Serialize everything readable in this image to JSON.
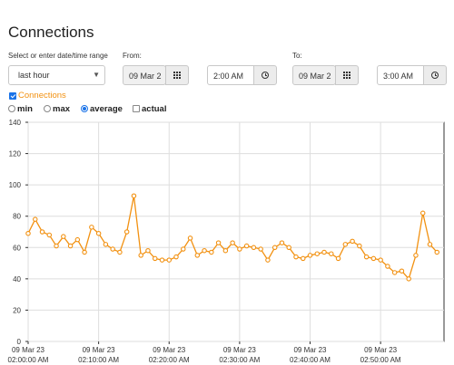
{
  "page": {
    "title": "Connections"
  },
  "range": {
    "select_label": "Select or enter date/time range",
    "selected": "last hour",
    "from_label": "From:",
    "from_date": "09 Mar 2",
    "from_time": "2:00 AM",
    "to_label": "To:",
    "to_date": "09 Mar 2",
    "to_time": "3:00 AM"
  },
  "series_toggle": {
    "label": "Connections",
    "checked": true,
    "color": "#f29111"
  },
  "stats": {
    "min_label": "min",
    "max_label": "max",
    "average_label": "average",
    "actual_label": "actual",
    "selected": "average"
  },
  "icons": {
    "calendar": "calendar-grid-icon",
    "clock": "clock-icon",
    "dropdown": "chevron-down-icon"
  },
  "chart_data": {
    "type": "line",
    "title": "",
    "xlabel": "",
    "ylabel": "",
    "ylim": [
      0,
      140
    ],
    "yticks": [
      0,
      20,
      40,
      60,
      80,
      100,
      120,
      140
    ],
    "xlim": [
      0,
      59
    ],
    "xticks": [
      {
        "x": 0,
        "line1": "09 Mar 23",
        "line2": "02:00:00 AM"
      },
      {
        "x": 10,
        "line1": "09 Mar 23",
        "line2": "02:10:00 AM"
      },
      {
        "x": 20,
        "line1": "09 Mar 23",
        "line2": "02:20:00 AM"
      },
      {
        "x": 30,
        "line1": "09 Mar 23",
        "line2": "02:30:00 AM"
      },
      {
        "x": 40,
        "line1": "09 Mar 23",
        "line2": "02:40:00 AM"
      },
      {
        "x": 50,
        "line1": "09 Mar 23",
        "line2": "02:50:00 AM"
      }
    ],
    "grid": true,
    "series": [
      {
        "color": "#f29111",
        "values": [
          69,
          78,
          70,
          68,
          61,
          67,
          61,
          65,
          57,
          73,
          69,
          62,
          59,
          57,
          70,
          93,
          55,
          58,
          53,
          52,
          52,
          54,
          59,
          66,
          55,
          58,
          57,
          63,
          58,
          63,
          59,
          61,
          60,
          59,
          52,
          60,
          63,
          60,
          54,
          53,
          55,
          56,
          57,
          56,
          53,
          62,
          64,
          61,
          54,
          53,
          52,
          48,
          44,
          45,
          40,
          55,
          82,
          62,
          57
        ]
      }
    ]
  }
}
